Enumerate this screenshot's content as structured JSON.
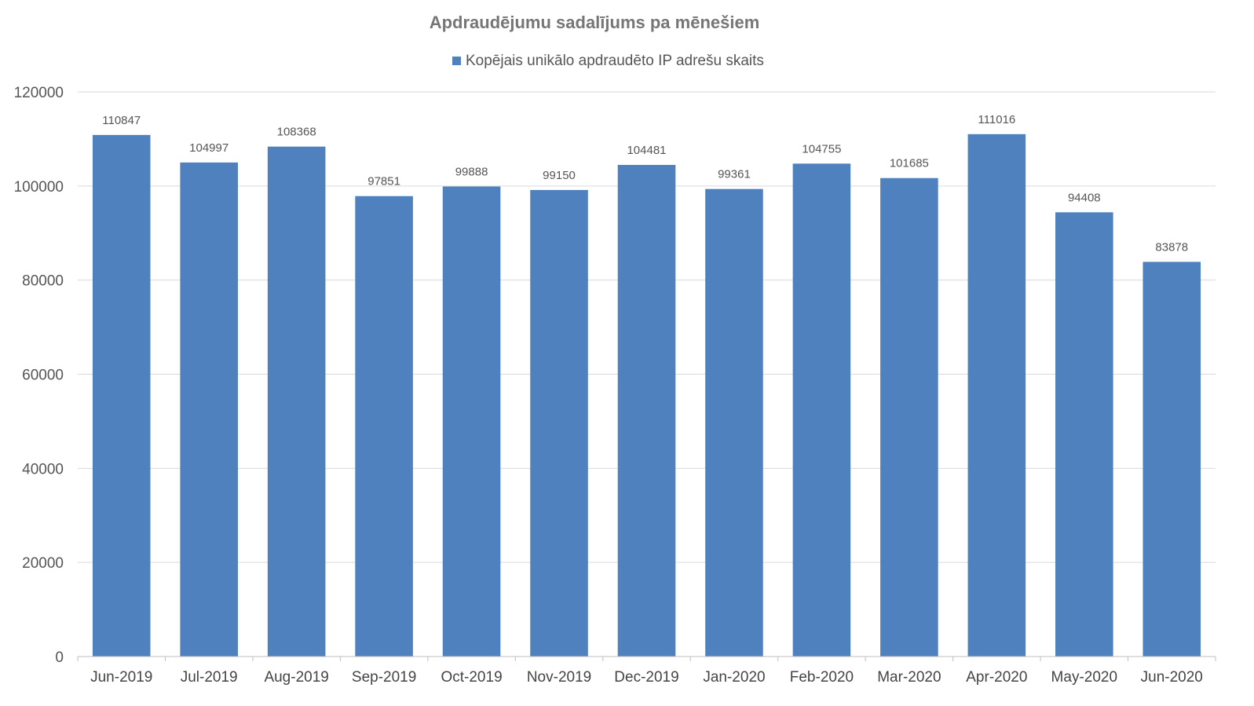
{
  "chart_data": {
    "type": "bar",
    "title": "Apdraudējumu sadalījums pa mēnešiem",
    "xlabel": "",
    "ylabel": "",
    "categories": [
      "Jun-2019",
      "Jul-2019",
      "Aug-2019",
      "Sep-2019",
      "Oct-2019",
      "Nov-2019",
      "Dec-2019",
      "Jan-2020",
      "Feb-2020",
      "Mar-2020",
      "Apr-2020",
      "May-2020",
      "Jun-2020"
    ],
    "series": [
      {
        "name": "Kopējais unikālo apdraudēto IP adrešu skaits",
        "color": "#4e81bd",
        "values": [
          110847,
          104997,
          108368,
          97851,
          99888,
          99150,
          104481,
          99361,
          104755,
          101685,
          111016,
          94408,
          83878
        ]
      }
    ],
    "ylim": [
      0,
      120000
    ],
    "yticks": [
      0,
      20000,
      40000,
      60000,
      80000,
      100000,
      120000
    ],
    "grid": true,
    "legend_position": "top",
    "data_labels": true
  }
}
